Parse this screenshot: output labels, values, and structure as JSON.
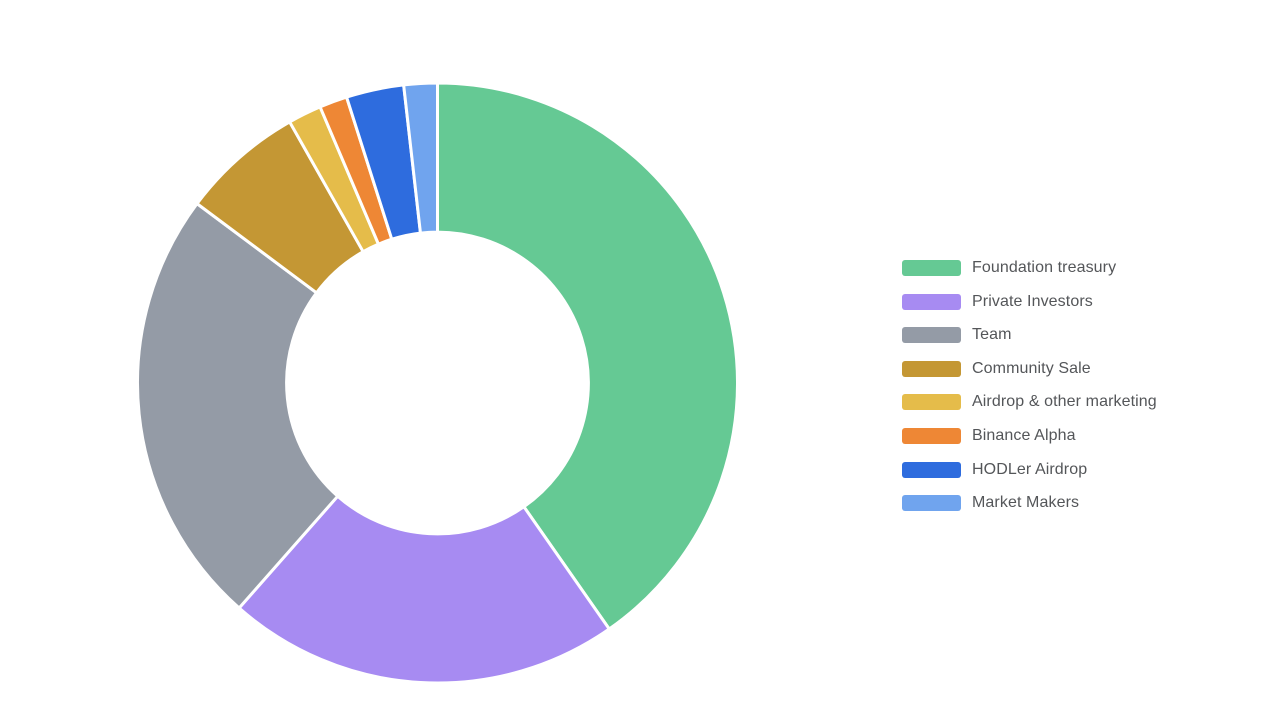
{
  "chart_data": {
    "type": "pie",
    "subtype": "donut",
    "title": "",
    "categories": [
      "Foundation treasury",
      "Private Investors",
      "Team",
      "Community Sale",
      "Airdrop & other marketing",
      "Binance Alpha",
      "HODLer Airdrop",
      "Market Makers"
    ],
    "values": [
      40.3,
      21.2,
      23.7,
      6.6,
      1.8,
      1.5,
      3.1,
      1.8
    ],
    "values_unit": "percent",
    "values_note": "shares estimated from slice angles; no numeric labels are shown in the image",
    "colors": [
      "#65C994",
      "#A78BF2",
      "#949BA6",
      "#C49734",
      "#E5BC4A",
      "#EE8735",
      "#2E6CDE",
      "#70A4EE"
    ],
    "start_angle": "12 o'clock",
    "direction": "clockwise",
    "inner_radius_ratio": 0.503,
    "slice_gap_color": "#FFFFFF",
    "background": "#FFFFFF",
    "legend_position": "right",
    "legend_text_color": "#545659"
  },
  "legend": {
    "items": [
      {
        "label": "Foundation treasury",
        "color": "#65C994"
      },
      {
        "label": "Private Investors",
        "color": "#A78BF2"
      },
      {
        "label": "Team",
        "color": "#949BA6"
      },
      {
        "label": "Community Sale",
        "color": "#C49734"
      },
      {
        "label": "Airdrop & other marketing",
        "color": "#E5BC4A"
      },
      {
        "label": "Binance Alpha",
        "color": "#EE8735"
      },
      {
        "label": "HODLer Airdrop",
        "color": "#2E6CDE"
      },
      {
        "label": "Market Makers",
        "color": "#70A4EE"
      }
    ]
  }
}
